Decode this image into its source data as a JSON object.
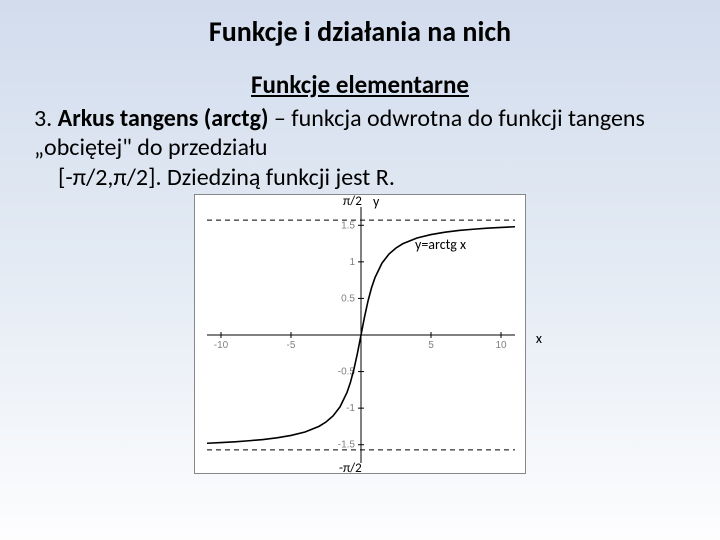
{
  "title": "Funkcje i działania na nich",
  "subtitle": "Funkcje elementarne",
  "item_number": "3.",
  "item_name": "Arkus tangens (arctg)",
  "item_desc_1": " – funkcja odwrotna do funkcji tangens „obciętej\" do przedziału",
  "item_desc_2": "[-π/2,π/2]. Dziedziną funkcji jest R.",
  "chart": {
    "type": "line",
    "function_label": "y=arctg x",
    "x_axis_label": "x",
    "y_axis_label": "y",
    "top_asymptote_label": "π/2",
    "bottom_asymptote_label": "-π/2",
    "xlim": [
      -11,
      11
    ],
    "ylim": [
      -1.75,
      1.75
    ],
    "xticks": [
      -10,
      -5,
      5,
      10
    ],
    "yticks": [
      -1.5,
      -1,
      -0.5,
      0.5,
      1,
      1.5
    ],
    "asymptote_y": [
      1.5708,
      -1.5708
    ],
    "curve_points": [
      [
        -11,
        -1.48
      ],
      [
        -10,
        -1.471
      ],
      [
        -9,
        -1.46
      ],
      [
        -8,
        -1.446
      ],
      [
        -7,
        -1.429
      ],
      [
        -6,
        -1.406
      ],
      [
        -5,
        -1.373
      ],
      [
        -4,
        -1.326
      ],
      [
        -3,
        -1.249
      ],
      [
        -2.5,
        -1.19
      ],
      [
        -2,
        -1.107
      ],
      [
        -1.5,
        -0.983
      ],
      [
        -1,
        -0.785
      ],
      [
        -0.75,
        -0.644
      ],
      [
        -0.5,
        -0.464
      ],
      [
        -0.25,
        -0.245
      ],
      [
        0,
        0
      ],
      [
        0.25,
        0.245
      ],
      [
        0.5,
        0.464
      ],
      [
        0.75,
        0.644
      ],
      [
        1,
        0.785
      ],
      [
        1.5,
        0.983
      ],
      [
        2,
        1.107
      ],
      [
        2.5,
        1.19
      ],
      [
        3,
        1.249
      ],
      [
        4,
        1.326
      ],
      [
        5,
        1.373
      ],
      [
        6,
        1.406
      ],
      [
        7,
        1.429
      ],
      [
        8,
        1.446
      ],
      [
        9,
        1.46
      ],
      [
        10,
        1.471
      ],
      [
        11,
        1.48
      ]
    ],
    "colors": {
      "background": "#ffffff",
      "axis": "#000000",
      "ticks": "#9a9a9a",
      "curve": "#000000",
      "asymptote": "#000000",
      "tick_font": "#808080"
    },
    "line_width_curve": 1.6,
    "line_width_axis": 1,
    "tick_fontsize": 10
  }
}
